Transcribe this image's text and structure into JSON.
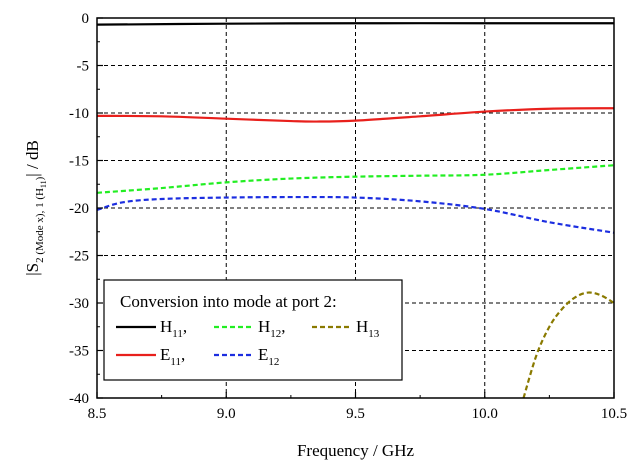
{
  "chart_data": {
    "type": "line",
    "title": "",
    "xlabel": "Frequency / GHz",
    "ylabel": {
      "prefix": "|S",
      "sub_main": "2 (Mode x), 1 (H",
      "sub_nested": "11",
      "sub_close": ")",
      "suffix": "|  / dB"
    },
    "xlim": [
      8.5,
      10.5
    ],
    "ylim": [
      -40,
      0
    ],
    "xticks": [
      "8.5",
      "9.0",
      "9.5",
      "10.0",
      "10.5"
    ],
    "xtick_values": [
      8.5,
      9.0,
      9.5,
      10.0,
      10.5
    ],
    "yticks": [
      "0",
      "-5",
      "-10",
      "-15",
      "-20",
      "-25",
      "-30",
      "-35",
      "-40"
    ],
    "ytick_values": [
      0,
      -5,
      -10,
      -15,
      -20,
      -25,
      -30,
      -35,
      -40
    ],
    "grid": true,
    "legend": {
      "title": "Conversion into mode at port 2:",
      "placement": "bottom-left",
      "entries": [
        {
          "series": 0,
          "base": "H",
          "sub": "11",
          "trail": ","
        },
        {
          "series": 1,
          "base": "H",
          "sub": "12",
          "trail": ","
        },
        {
          "series": 2,
          "base": "H",
          "sub": "13",
          "trail": ""
        },
        {
          "series": 3,
          "base": "E",
          "sub": "11",
          "trail": ","
        },
        {
          "series": 4,
          "base": "E",
          "sub": "12",
          "trail": ""
        }
      ]
    },
    "series": [
      {
        "name": "H11",
        "color": "#000000",
        "dash": "solid",
        "x": [
          8.5,
          9.0,
          9.5,
          10.0,
          10.5
        ],
        "y": [
          -0.7,
          -0.6,
          -0.55,
          -0.55,
          -0.55
        ]
      },
      {
        "name": "H12",
        "color": "#22ee22",
        "dash": "dashed",
        "x": [
          8.5,
          8.75,
          9.0,
          9.25,
          9.5,
          9.75,
          10.0,
          10.25,
          10.5
        ],
        "y": [
          -18.4,
          -17.9,
          -17.3,
          -16.9,
          -16.7,
          -16.6,
          -16.5,
          -16.0,
          -15.5
        ]
      },
      {
        "name": "H13",
        "color": "#8a7a00",
        "dash": "dashed",
        "x": [
          10.15,
          10.2,
          10.25,
          10.3,
          10.35,
          10.4,
          10.45,
          10.5
        ],
        "y": [
          -40.0,
          -35.5,
          -32.5,
          -30.6,
          -29.4,
          -28.9,
          -29.2,
          -30.0
        ]
      },
      {
        "name": "E11",
        "color": "#e8201c",
        "dash": "solid",
        "x": [
          8.5,
          8.75,
          9.0,
          9.25,
          9.35,
          9.5,
          9.75,
          10.0,
          10.25,
          10.5
        ],
        "y": [
          -10.3,
          -10.35,
          -10.6,
          -10.85,
          -10.9,
          -10.8,
          -10.35,
          -9.85,
          -9.55,
          -9.5
        ]
      },
      {
        "name": "E12",
        "color": "#1c2ee0",
        "dash": "dashed",
        "x": [
          8.5,
          8.6,
          8.75,
          9.0,
          9.25,
          9.5,
          9.75,
          10.0,
          10.25,
          10.5
        ],
        "y": [
          -20.2,
          -19.4,
          -19.05,
          -18.9,
          -18.85,
          -18.9,
          -19.3,
          -20.1,
          -21.5,
          -22.6
        ]
      }
    ]
  }
}
